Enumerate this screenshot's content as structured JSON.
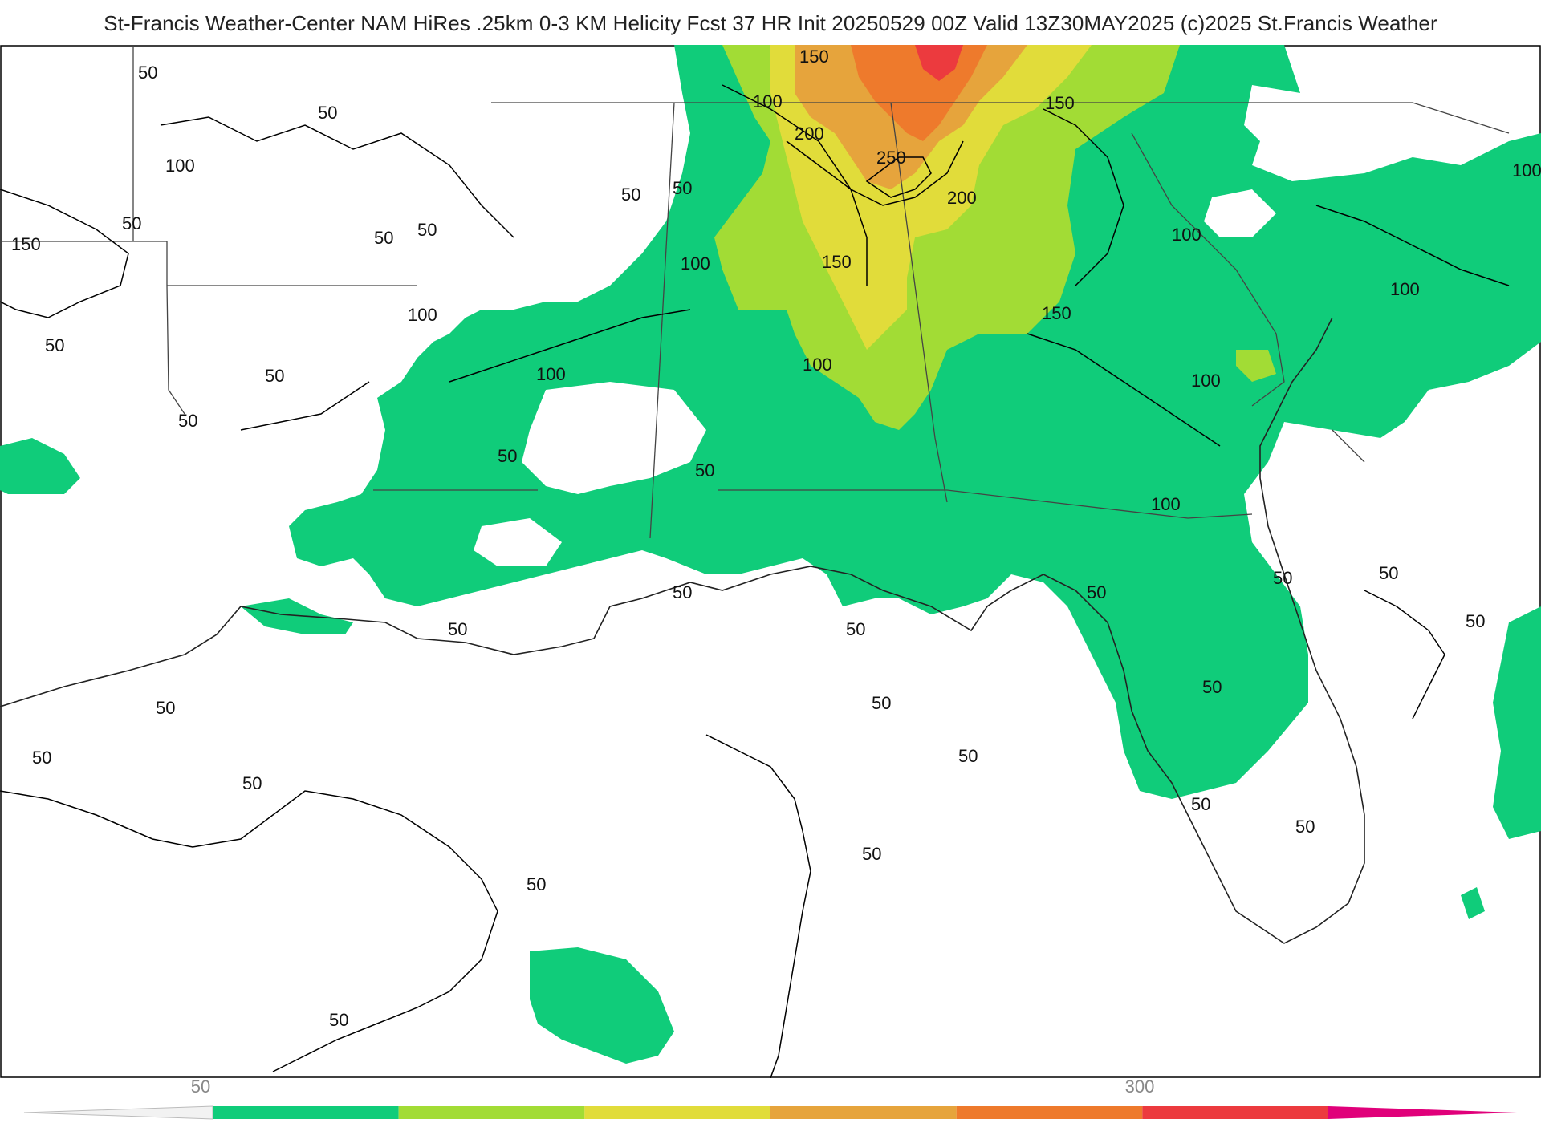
{
  "title": "St-Francis Weather-Center NAM HiRes .25km 0-3 KM Helicity Fcst 37 HR Init 20250529 00Z  Valid 13Z30MAY2025    (c)2025 St.Francis Weather",
  "colors": {
    "green": "#10cc7a",
    "light_green": "#a2dc35",
    "yellow": "#e1dc3a",
    "light_orange": "#e6a43c",
    "orange": "#ee7a2c",
    "red": "#ec3a3e",
    "magenta": "#e0007a",
    "contour": "#000000",
    "border": "#444444",
    "county": "#c8c8c8"
  },
  "contour_labels": [
    "50",
    "50",
    "100",
    "150",
    "50",
    "50",
    "50",
    "100",
    "50",
    "50",
    "50",
    "100",
    "50",
    "50",
    "50",
    "100",
    "50",
    "150",
    "100",
    "200",
    "250",
    "200",
    "150",
    "100",
    "100",
    "150",
    "150",
    "100",
    "100",
    "100",
    "100",
    "50",
    "50",
    "50",
    "50",
    "50",
    "50",
    "50",
    "50",
    "50",
    "50",
    "50",
    "50",
    "50",
    "50",
    "50"
  ],
  "colorbar": {
    "tick_labels": [
      "50",
      "300"
    ],
    "segments": [
      "green",
      "light_green",
      "yellow",
      "light_orange",
      "orange",
      "red"
    ]
  }
}
